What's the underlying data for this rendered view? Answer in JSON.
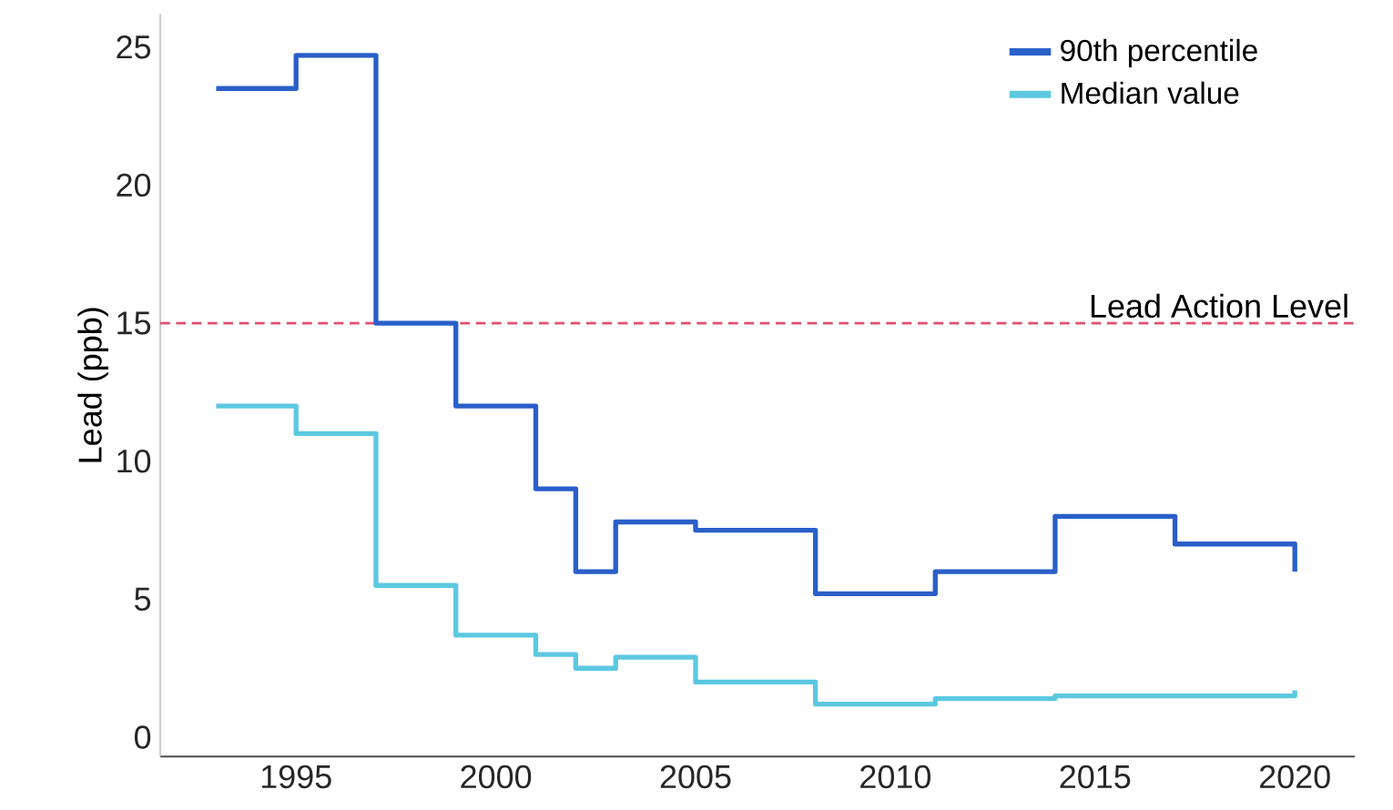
{
  "chart_data": {
    "type": "step",
    "ylabel": "Lead (ppb)",
    "xlim": [
      1991.6,
      2021.5
    ],
    "xticks": [
      1995,
      2000,
      2005,
      2010,
      2015,
      2020
    ],
    "ylim": [
      -0.7,
      26.2
    ],
    "yticks": [
      0,
      5,
      10,
      15,
      20,
      25
    ],
    "series": [
      {
        "name": "90th percentile",
        "color": "#2a5fc9",
        "x": [
          1993,
          1995,
          1997,
          1999,
          2001,
          2002,
          2003,
          2005,
          2008,
          2011,
          2014,
          2017,
          2020,
          2020
        ],
        "values": [
          23.5,
          24.7,
          15,
          12,
          9,
          6,
          7.8,
          7.5,
          5.2,
          6,
          8,
          7,
          7,
          6
        ]
      },
      {
        "name": "Median value",
        "color": "#5cc8e0",
        "x": [
          1993,
          1995,
          1997,
          1999,
          2001,
          2002,
          2003,
          2005,
          2008,
          2011,
          2014,
          2017,
          2020,
          2020
        ],
        "values": [
          12,
          11,
          5.5,
          3.7,
          3.0,
          2.5,
          2.9,
          2.0,
          1.2,
          1.4,
          1.5,
          1.5,
          1.5,
          1.7
        ]
      }
    ],
    "ref_lines": [
      {
        "axis": "y",
        "value": 15,
        "label": "Lead Action Level",
        "color": "#e05070",
        "line_style": "dashed"
      }
    ],
    "legend": "top right",
    "grid": false
  }
}
